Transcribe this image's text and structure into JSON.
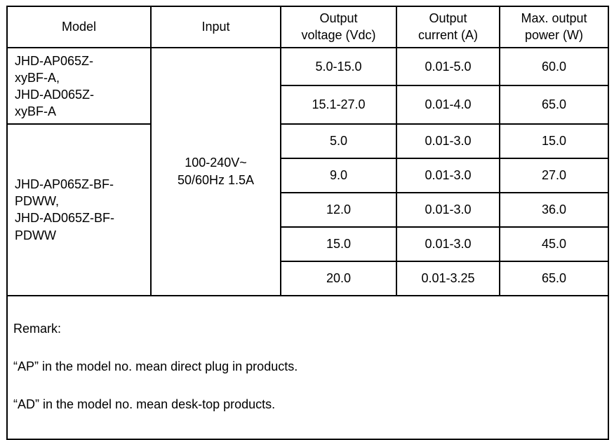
{
  "table": {
    "headers": {
      "model": "Model",
      "input": "Input",
      "voltage": "Output\nvoltage (Vdc)",
      "current": "Output\ncurrent (A)",
      "power": "Max. output\npower (W)"
    },
    "model_groups": [
      {
        "label": "JHD-AP065Z-\nxyBF-A,\nJHD-AD065Z-\nxyBF-A"
      },
      {
        "label": "JHD-AP065Z-BF-\nPDWW,\nJHD-AD065Z-BF-\nPDWW"
      }
    ],
    "input_value": "100-240V~\n50/60Hz 1.5A",
    "rows": [
      {
        "voltage": "5.0-15.0",
        "current": "0.01-5.0",
        "power": "60.0"
      },
      {
        "voltage": "15.1-27.0",
        "current": "0.01-4.0",
        "power": "65.0"
      },
      {
        "voltage": "5.0",
        "current": "0.01-3.0",
        "power": "15.0"
      },
      {
        "voltage": "9.0",
        "current": "0.01-3.0",
        "power": "27.0"
      },
      {
        "voltage": "12.0",
        "current": "0.01-3.0",
        "power": "36.0"
      },
      {
        "voltage": "15.0",
        "current": "0.01-3.0",
        "power": "45.0"
      },
      {
        "voltage": "20.0",
        "current": "0.01-3.25",
        "power": "65.0"
      }
    ],
    "remark": {
      "title": "Remark:",
      "line1": "“AP” in the model no. mean direct plug in products.",
      "line2": "“AD” in the model no. mean desk-top products."
    }
  },
  "colors": {
    "border": "#000000",
    "background": "#ffffff",
    "text": "#000000"
  }
}
